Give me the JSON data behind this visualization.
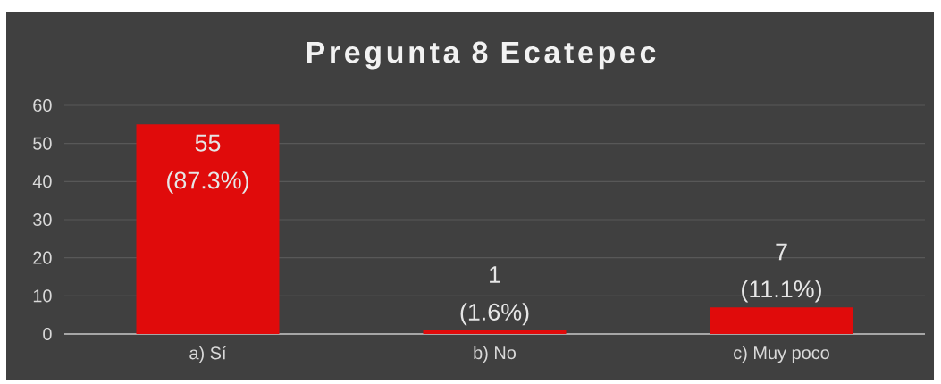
{
  "chart_data": {
    "type": "bar",
    "title": "Pregunta 8 Ecatepec",
    "categories": [
      "a) Sí",
      "b) No",
      "c) Muy poco"
    ],
    "values": [
      55,
      1,
      7
    ],
    "color": "#e00b0b",
    "value_labels": [
      "55 (87.3%)",
      "1 (1.6%)",
      "7 (11.1%)"
    ],
    "ylim": [
      0,
      60
    ],
    "yticks": [
      0,
      10,
      20,
      30,
      40,
      50,
      60
    ],
    "grid": "y"
  }
}
